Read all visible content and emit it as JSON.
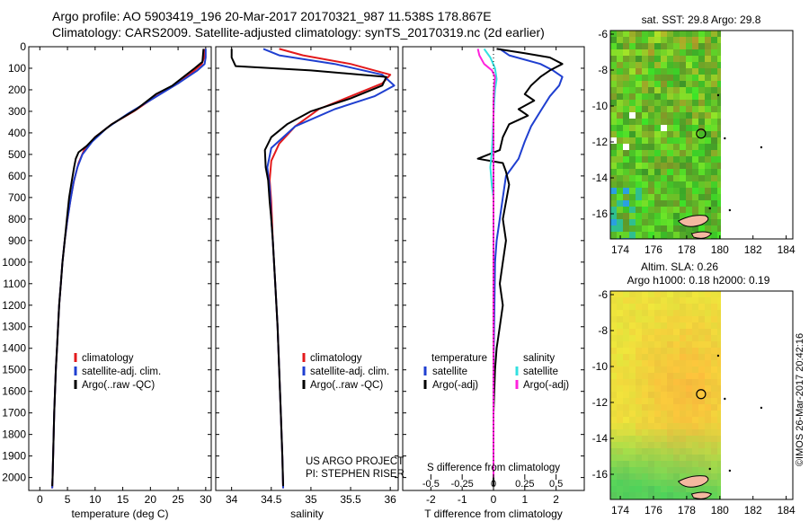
{
  "header": {
    "line1": "Argo profile: AO 5903419_196 20-Mar-2017 20170321_987 11.538S 178.867E",
    "line2": "Climatology: CARS2009. Satellite-adjusted climatology: synTS_20170319.nc (2d earlier)"
  },
  "side_label": "©IMOS 26-Mar-2017 20:42:16",
  "colors": {
    "climatology": "#e31a1c",
    "satellite": "#1f3fd0",
    "argo": "#000000",
    "salinity_satellite": "#33e0e0",
    "salinity_argo": "#ff22dd"
  },
  "chart_data": [
    {
      "type": "line",
      "id": "temperature",
      "xlabel": "temperature (deg C)",
      "xlim": [
        -2,
        31
      ],
      "xticks": [
        0,
        5,
        10,
        15,
        20,
        25,
        30
      ],
      "ylim": [
        0,
        2060
      ],
      "yticks": [
        0,
        100,
        200,
        300,
        400,
        500,
        600,
        700,
        800,
        900,
        1000,
        1100,
        1200,
        1300,
        1400,
        1500,
        1600,
        1700,
        1800,
        1900,
        2000
      ],
      "legend": [
        "climatology",
        "satellite-adj. clim.",
        "Argo(..raw -QC)"
      ],
      "series": [
        {
          "name": "climatology",
          "color_key": "climatology",
          "points": [
            [
              29.8,
              10
            ],
            [
              29.7,
              50
            ],
            [
              29.3,
              80
            ],
            [
              27.5,
              120
            ],
            [
              25,
              170
            ],
            [
              21,
              230
            ],
            [
              17,
              300
            ],
            [
              13,
              360
            ],
            [
              10,
              420
            ],
            [
              8,
              480
            ],
            [
              7,
              540
            ],
            [
              6.2,
              620
            ],
            [
              5.6,
              700
            ],
            [
              5,
              800
            ],
            [
              4.5,
              900
            ],
            [
              4.1,
              1000
            ],
            [
              3.8,
              1100
            ],
            [
              3.5,
              1200
            ],
            [
              3.3,
              1300
            ],
            [
              3.1,
              1400
            ],
            [
              2.9,
              1500
            ],
            [
              2.75,
              1600
            ],
            [
              2.6,
              1700
            ],
            [
              2.5,
              1800
            ],
            [
              2.4,
              1900
            ],
            [
              2.3,
              2000
            ],
            [
              2.25,
              2050
            ]
          ]
        },
        {
          "name": "satellite-adj. clim.",
          "color_key": "satellite",
          "points": [
            [
              30.0,
              10
            ],
            [
              30.0,
              50
            ],
            [
              29.8,
              80
            ],
            [
              28.5,
              110
            ],
            [
              25,
              170
            ],
            [
              20.5,
              240
            ],
            [
              16,
              310
            ],
            [
              12,
              380
            ],
            [
              9.5,
              440
            ],
            [
              7.7,
              500
            ],
            [
              6.8,
              560
            ],
            [
              6.1,
              630
            ],
            [
              5.5,
              720
            ],
            [
              5,
              800
            ],
            [
              4.5,
              900
            ],
            [
              4.1,
              1000
            ],
            [
              3.8,
              1100
            ],
            [
              3.5,
              1200
            ],
            [
              3.3,
              1300
            ],
            [
              3.1,
              1400
            ],
            [
              2.9,
              1500
            ],
            [
              2.75,
              1600
            ],
            [
              2.6,
              1700
            ],
            [
              2.5,
              1800
            ],
            [
              2.4,
              1900
            ],
            [
              2.3,
              2000
            ],
            [
              2.25,
              2050
            ]
          ]
        },
        {
          "name": "Argo(..raw -QC)",
          "color_key": "argo",
          "points": [
            [
              29.6,
              10
            ],
            [
              29.5,
              40
            ],
            [
              29.4,
              70
            ],
            [
              28,
              100
            ],
            [
              26.5,
              130
            ],
            [
              24,
              180
            ],
            [
              21,
              220
            ],
            [
              17.5,
              290
            ],
            [
              13,
              360
            ],
            [
              10,
              420
            ],
            [
              8.5,
              460
            ],
            [
              7,
              490
            ],
            [
              6.5,
              520
            ],
            [
              6.2,
              560
            ],
            [
              5.8,
              620
            ],
            [
              5.3,
              700
            ],
            [
              4.9,
              800
            ],
            [
              4.5,
              900
            ],
            [
              4.1,
              1000
            ],
            [
              3.8,
              1100
            ],
            [
              3.5,
              1200
            ],
            [
              3.3,
              1300
            ],
            [
              3.1,
              1400
            ],
            [
              2.9,
              1500
            ],
            [
              2.75,
              1600
            ],
            [
              2.6,
              1700
            ],
            [
              2.5,
              1800
            ],
            [
              2.4,
              1900
            ],
            [
              2.3,
              2000
            ],
            [
              2.25,
              2040
            ]
          ]
        }
      ]
    },
    {
      "type": "line",
      "id": "salinity",
      "xlabel": "salinity",
      "xlim": [
        33.8,
        36.1
      ],
      "xticks": [
        34,
        34.5,
        35,
        35.5,
        36
      ],
      "xticklabels": [
        "34",
        "34.5",
        "35",
        "35.5",
        "36"
      ],
      "ylim": [
        0,
        2060
      ],
      "legend": [
        "climatology",
        "satellite-adj. clim.",
        "Argo(..raw -QC)"
      ],
      "annotation": [
        "US ARGO PROJECT",
        "PI: STEPHEN RISER"
      ],
      "series": [
        {
          "name": "climatology",
          "color_key": "climatology",
          "points": [
            [
              34.6,
              10
            ],
            [
              34.9,
              40
            ],
            [
              35.5,
              80
            ],
            [
              36.0,
              130
            ],
            [
              35.9,
              170
            ],
            [
              35.5,
              230
            ],
            [
              35.1,
              290
            ],
            [
              34.8,
              370
            ],
            [
              34.6,
              450
            ],
            [
              34.5,
              530
            ],
            [
              34.48,
              620
            ],
            [
              34.5,
              720
            ],
            [
              34.52,
              900
            ],
            [
              34.55,
              1100
            ],
            [
              34.58,
              1300
            ],
            [
              34.6,
              1500
            ],
            [
              34.62,
              1700
            ],
            [
              34.64,
              1900
            ],
            [
              34.65,
              2050
            ]
          ]
        },
        {
          "name": "satellite-adj. clim.",
          "color_key": "satellite",
          "points": [
            [
              34.4,
              10
            ],
            [
              34.6,
              40
            ],
            [
              35.3,
              80
            ],
            [
              35.9,
              130
            ],
            [
              36.05,
              180
            ],
            [
              35.8,
              230
            ],
            [
              35.3,
              290
            ],
            [
              34.8,
              370
            ],
            [
              34.5,
              470
            ],
            [
              34.45,
              560
            ],
            [
              34.48,
              650
            ],
            [
              34.5,
              800
            ],
            [
              34.52,
              900
            ],
            [
              34.55,
              1100
            ],
            [
              34.58,
              1300
            ],
            [
              34.6,
              1500
            ],
            [
              34.62,
              1700
            ],
            [
              34.64,
              1900
            ],
            [
              34.65,
              2050
            ]
          ]
        },
        {
          "name": "Argo(..raw -QC)",
          "color_key": "argo",
          "points": [
            [
              34.0,
              10
            ],
            [
              34.0,
              50
            ],
            [
              34.05,
              90
            ],
            [
              35.0,
              110
            ],
            [
              35.95,
              140
            ],
            [
              35.9,
              180
            ],
            [
              35.5,
              240
            ],
            [
              35.0,
              300
            ],
            [
              34.7,
              360
            ],
            [
              34.5,
              420
            ],
            [
              34.42,
              480
            ],
            [
              34.43,
              560
            ],
            [
              34.46,
              620
            ],
            [
              34.48,
              720
            ],
            [
              34.5,
              800
            ],
            [
              34.52,
              900
            ],
            [
              34.55,
              1100
            ],
            [
              34.58,
              1300
            ],
            [
              34.6,
              1500
            ],
            [
              34.62,
              1700
            ],
            [
              34.64,
              1900
            ],
            [
              34.65,
              2040
            ]
          ]
        }
      ]
    },
    {
      "type": "line",
      "id": "difference",
      "xlabel": "T difference from climatology",
      "xlabel_top": "S difference from climatology",
      "xlim": [
        -2.9,
        2.9
      ],
      "xticks": [
        -2,
        -1,
        0,
        1,
        2
      ],
      "s_ticks": [
        -0.5,
        -0.25,
        0,
        0.25,
        0.5
      ],
      "s_ticklabels": [
        "-0.5",
        "-0.25",
        "0",
        "0.25",
        "0.5"
      ],
      "ylim": [
        0,
        2060
      ],
      "legend": {
        "temperature_title": "temperature",
        "salinity_title": "salinity",
        "t_entries": [
          "satellite",
          "Argo(-adj)"
        ],
        "s_entries": [
          "satellite",
          "Argo(-adj)"
        ]
      },
      "series": [
        {
          "name": "satellite",
          "color_key": "satellite",
          "points": [
            [
              0.2,
              10
            ],
            [
              0.5,
              40
            ],
            [
              1.5,
              80
            ],
            [
              1.9,
              110
            ],
            [
              2.2,
              140
            ],
            [
              2.1,
              180
            ],
            [
              1.8,
              230
            ],
            [
              1.5,
              300
            ],
            [
              1.2,
              370
            ],
            [
              1.0,
              440
            ],
            [
              0.8,
              520
            ],
            [
              0.4,
              600
            ],
            [
              0.3,
              700
            ],
            [
              0.2,
              800
            ],
            [
              0.1,
              900
            ],
            [
              0.05,
              1000
            ],
            [
              0,
              1500
            ],
            [
              0,
              2000
            ]
          ]
        },
        {
          "name": "Argo(-adj)",
          "color_key": "argo",
          "points": [
            [
              0.1,
              10
            ],
            [
              1.0,
              30
            ],
            [
              1.8,
              50
            ],
            [
              2.2,
              80
            ],
            [
              1.8,
              110
            ],
            [
              1.5,
              140
            ],
            [
              1.2,
              180
            ],
            [
              1.0,
              220
            ],
            [
              1.3,
              250
            ],
            [
              0.8,
              290
            ],
            [
              1.1,
              320
            ],
            [
              0.5,
              360
            ],
            [
              0.3,
              420
            ],
            [
              0.2,
              480
            ],
            [
              -0.5,
              520
            ],
            [
              0.3,
              540
            ],
            [
              0.4,
              580
            ],
            [
              0.5,
              640
            ],
            [
              0.4,
              720
            ],
            [
              0.3,
              800
            ],
            [
              0.4,
              900
            ],
            [
              0.3,
              1000
            ],
            [
              0.2,
              1100
            ],
            [
              0.3,
              1200
            ],
            [
              0.2,
              1300
            ],
            [
              0.1,
              1400
            ],
            [
              0.05,
              1500
            ],
            [
              0,
              1700
            ],
            [
              0,
              2040
            ]
          ]
        },
        {
          "name": "satellite S",
          "color_key": "salinity_satellite",
          "points": [
            [
              -0.3,
              10
            ],
            [
              -0.1,
              50
            ],
            [
              0.05,
              100
            ],
            [
              0.1,
              150
            ],
            [
              0.05,
              200
            ],
            [
              0.02,
              260
            ],
            [
              0,
              320
            ],
            [
              -0.02,
              400
            ],
            [
              -0.05,
              480
            ],
            [
              -0.1,
              560
            ],
            [
              -0.05,
              650
            ],
            [
              0,
              700
            ],
            [
              0,
              1000
            ],
            [
              0,
              1500
            ],
            [
              0,
              2000
            ]
          ]
        },
        {
          "name": "Argo(-adj) S",
          "color_key": "salinity_argo",
          "points": [
            [
              -0.5,
              10
            ],
            [
              -0.45,
              40
            ],
            [
              -0.3,
              80
            ],
            [
              -0.05,
              110
            ],
            [
              0.05,
              140
            ],
            [
              0.02,
              180
            ],
            [
              0,
              260
            ],
            [
              0,
              300
            ],
            [
              0,
              2000
            ]
          ]
        }
      ]
    },
    {
      "type": "heatmap",
      "id": "sst_map",
      "title": "sat. SST: 29.8 Argo: 29.8",
      "xlim": [
        173.4,
        184.4
      ],
      "ylim": [
        -17.4,
        -5.8
      ],
      "xticks": [
        174,
        176,
        178,
        180,
        182,
        184
      ],
      "yticks": [
        -6,
        -8,
        -10,
        -12,
        -14,
        -16
      ],
      "data_extent_lon": [
        173.4,
        180.2
      ],
      "marker": {
        "lon": 178.867,
        "lat": -11.538
      }
    },
    {
      "type": "heatmap",
      "id": "sla_map",
      "title_line1": "Altim. SLA: 0.26",
      "title_line2": "Argo h1000: 0.18 h2000: 0.19",
      "xlim": [
        173.4,
        184.4
      ],
      "ylim": [
        -17.4,
        -5.8
      ],
      "xticks": [
        174,
        176,
        178,
        180,
        182,
        184
      ],
      "yticks": [
        -6,
        -8,
        -10,
        -12,
        -14,
        -16
      ],
      "data_extent_lon": [
        173.4,
        180.2
      ],
      "marker": {
        "lon": 178.867,
        "lat": -11.538
      }
    }
  ]
}
